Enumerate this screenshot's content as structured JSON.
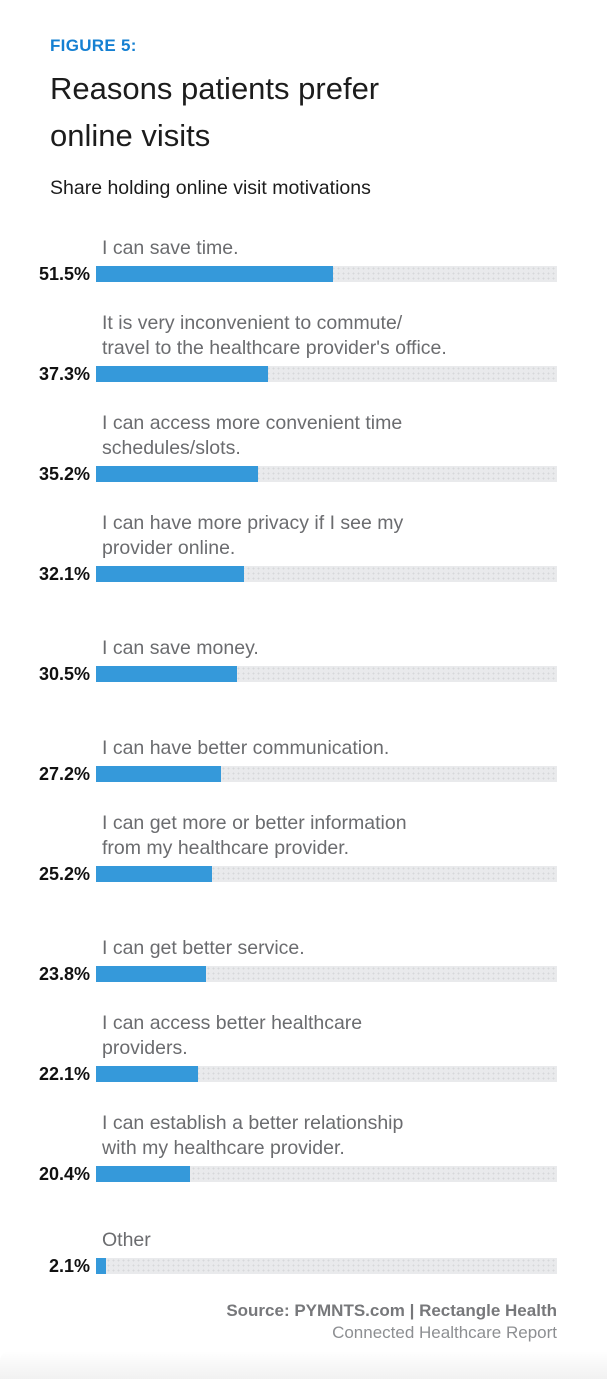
{
  "header": {
    "figure_label": "FIGURE 5:",
    "title": "Reasons patients prefer online visits",
    "subtitle": "Share holding online visit motivations"
  },
  "chart_data": {
    "type": "bar",
    "orientation": "horizontal",
    "title": "Reasons patients prefer online visits",
    "subtitle": "Share holding online visit motivations",
    "xlim": [
      0,
      100
    ],
    "unit": "%",
    "grid": false,
    "legend": false,
    "categories": [
      "I can save time.",
      "It is very inconvenient to commute/travel to the healthcare provider's office.",
      "I can access more convenient time schedules/slots.",
      "I can have more privacy if I see my provider online.",
      "I can save money.",
      "I can have better communication.",
      "I can get more or better information from my healthcare provider.",
      "I can get better service.",
      "I can access better healthcare providers.",
      "I can establish a better relationship with my healthcare provider.",
      "Other"
    ],
    "label_lines": [
      [
        "I can save time."
      ],
      [
        "It is very inconvenient to commute/",
        "travel to the healthcare provider's office."
      ],
      [
        "I can access more convenient time",
        "schedules/slots."
      ],
      [
        "I can have more privacy if I see my",
        "provider online."
      ],
      [
        "I can save money."
      ],
      [
        "I can have better communication."
      ],
      [
        "I can get more or better information",
        "from my healthcare provider."
      ],
      [
        "I can get better service."
      ],
      [
        "I can access better healthcare",
        "providers."
      ],
      [
        "I can establish a better relationship",
        "with my healthcare provider."
      ],
      [
        "Other"
      ]
    ],
    "values": [
      51.5,
      37.3,
      35.2,
      32.1,
      30.5,
      27.2,
      25.2,
      23.8,
      22.1,
      20.4,
      2.1
    ],
    "value_labels": [
      "51.5%",
      "37.3%",
      "35.2%",
      "32.1%",
      "30.5%",
      "27.2%",
      "25.2%",
      "23.8%",
      "22.1%",
      "20.4%",
      "2.1%"
    ]
  },
  "footer": {
    "source_line": "Source: PYMNTS.com  |  Rectangle Health",
    "report_line": "Connected Healthcare Report"
  },
  "colors": {
    "bar_fill": "#3599da",
    "bar_track": "#e9eaec",
    "accent_blue": "#1580d2",
    "label_gray": "#6b6c6f",
    "title_black": "#1c1c1c",
    "footer_gray": "#77787b"
  }
}
